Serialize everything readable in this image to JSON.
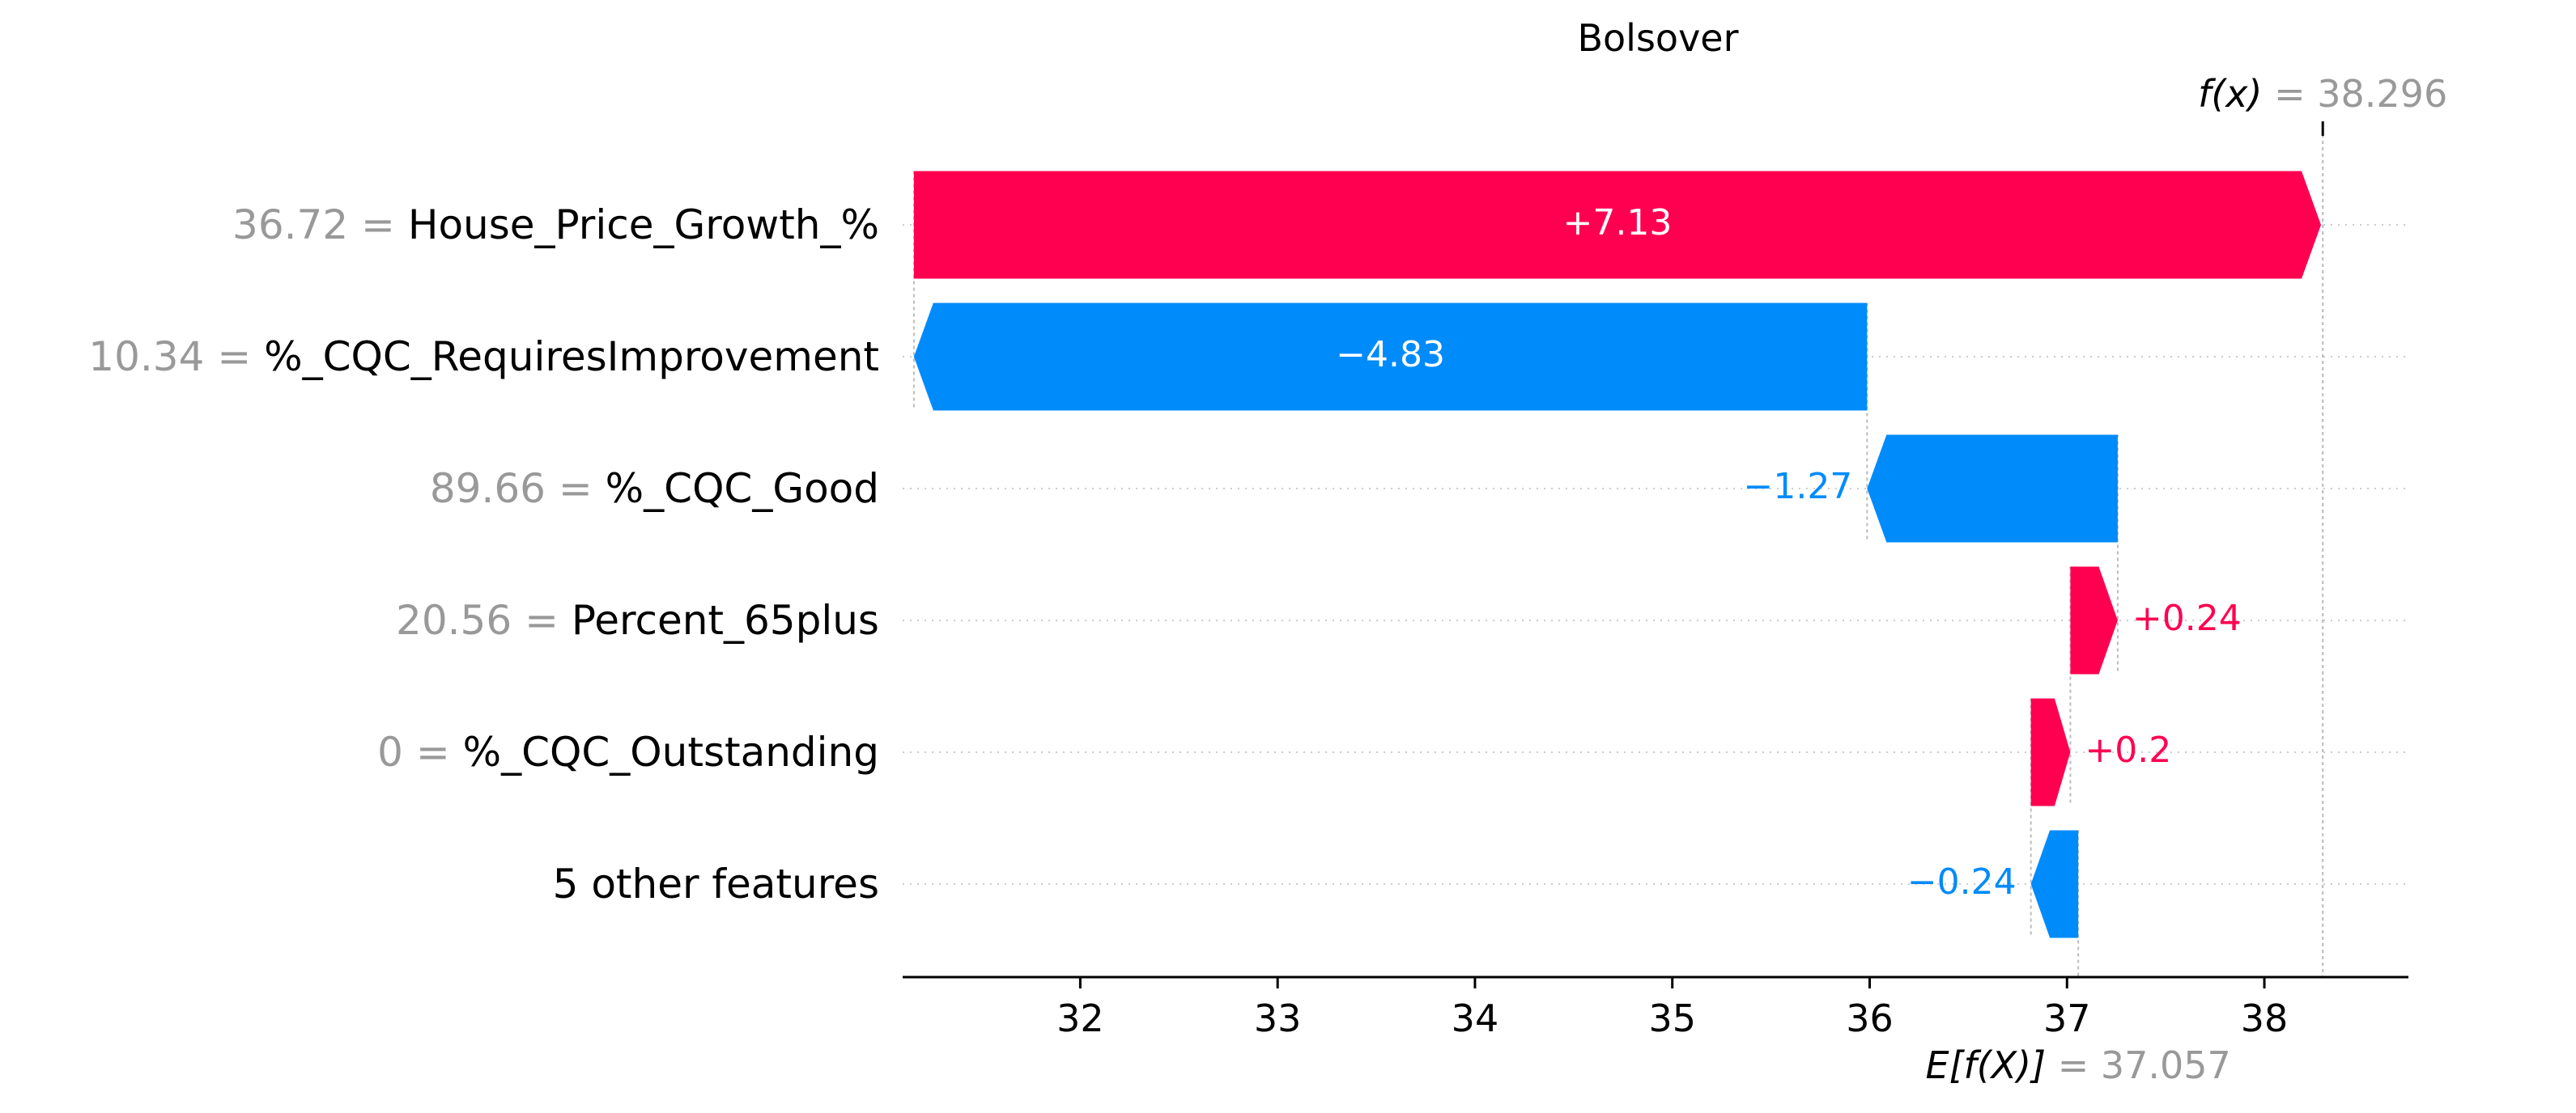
{
  "chart_data": {
    "type": "waterfall",
    "title": "Bolsover",
    "base_value": 37.057,
    "base_label_prefix": "E[f(X)]",
    "base_label_value": "= 37.057",
    "output_value": 38.296,
    "output_label_prefix": "f(x)",
    "output_label_value": "= 38.296",
    "x_ticks": [
      32,
      33,
      34,
      35,
      36,
      37,
      38
    ],
    "xlim": [
      31.1,
      38.73
    ],
    "grid": "dotted horizontal lines per row",
    "colors": {
      "positive": "#ff0051",
      "negative": "#008bfb",
      "value_gray": "#999999",
      "text": "#000000"
    },
    "features": [
      {
        "value_text": "36.72 =",
        "name": "House_Price_Growth_%",
        "contribution": 7.13,
        "label": "+7.13"
      },
      {
        "value_text": "10.34 =",
        "name": "%_CQC_RequiresImprovement",
        "contribution": -4.83,
        "label": "−4.83"
      },
      {
        "value_text": "89.66 =",
        "name": "%_CQC_Good",
        "contribution": -1.27,
        "label": "−1.27"
      },
      {
        "value_text": "20.56 =",
        "name": "Percent_65plus",
        "contribution": 0.24,
        "label": "+0.24"
      },
      {
        "value_text": "0 =",
        "name": "%_CQC_Outstanding",
        "contribution": 0.2,
        "label": "+0.2"
      },
      {
        "value_text": "",
        "name": "5 other features",
        "contribution": -0.24,
        "label": "−0.24"
      }
    ]
  }
}
